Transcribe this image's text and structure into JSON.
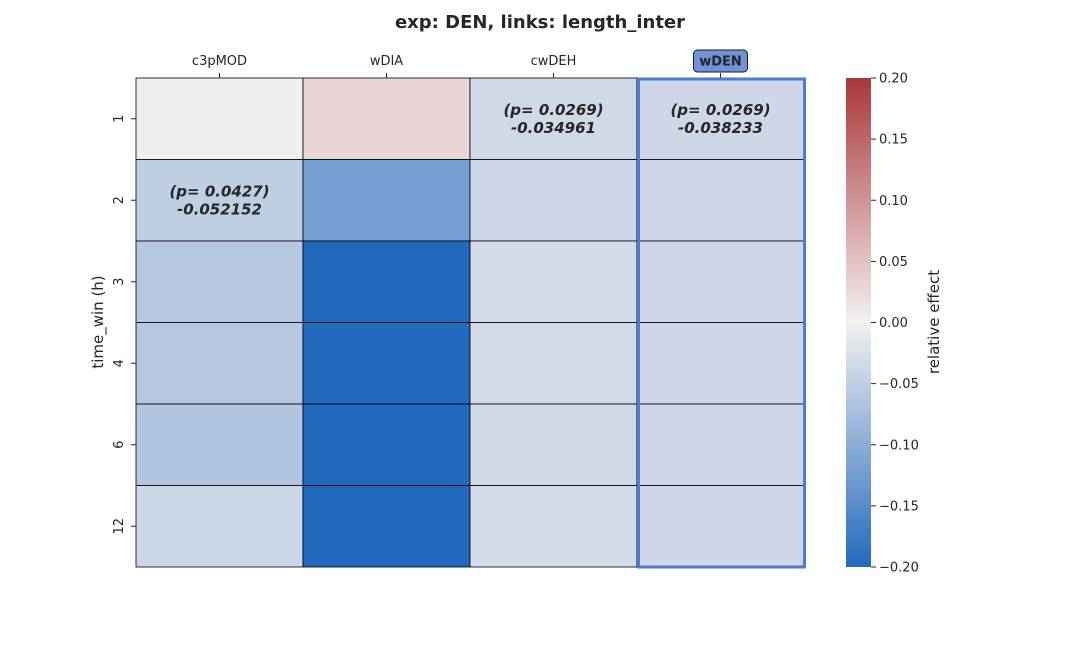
{
  "chart_data": {
    "type": "heatmap",
    "title": "exp: DEN, links: length_inter",
    "x_categories": [
      "c3pMOD",
      "wDIA",
      "cwDEH",
      "wDEN"
    ],
    "y_categories": [
      "1",
      "2",
      "3",
      "4",
      "6",
      "12"
    ],
    "ylabel": "time_win (h)",
    "xlabel": "",
    "highlighted_column": "wDEN",
    "values": [
      [
        -0.004,
        0.03,
        -0.034961,
        -0.038233
      ],
      [
        -0.052152,
        -0.12,
        -0.038,
        -0.038
      ],
      [
        -0.06,
        -0.2,
        -0.032,
        -0.038
      ],
      [
        -0.06,
        -0.2,
        -0.034,
        -0.038
      ],
      [
        -0.065,
        -0.2,
        -0.036,
        -0.038
      ],
      [
        -0.04,
        -0.2,
        -0.032,
        -0.038
      ]
    ],
    "annotations": [
      {
        "row": 0,
        "col": 2,
        "line1": "(p= 0.0269)",
        "line2": "-0.034961"
      },
      {
        "row": 0,
        "col": 3,
        "line1": "(p= 0.0269)",
        "line2": "-0.038233"
      },
      {
        "row": 1,
        "col": 0,
        "line1": "(p= 0.0427)",
        "line2": "-0.052152"
      }
    ],
    "colorbar": {
      "label": "relative effect",
      "vmin": -0.2,
      "vmax": 0.2,
      "ticks": [
        0.2,
        0.15,
        0.1,
        0.05,
        0.0,
        -0.05,
        -0.1,
        -0.15,
        -0.2
      ],
      "tick_labels": [
        "0.20",
        "0.15",
        "0.10",
        "0.05",
        "0.00",
        "−0.05",
        "−0.10",
        "−0.15",
        "−0.20"
      ],
      "colormap": "vlag",
      "color_low": "#2369bd",
      "color_mid": "#f5f1f1",
      "color_high": "#a9373b"
    },
    "grid": true,
    "highlight_color": "#4d7dd0",
    "highlight_label_bg": "#7193d6"
  }
}
